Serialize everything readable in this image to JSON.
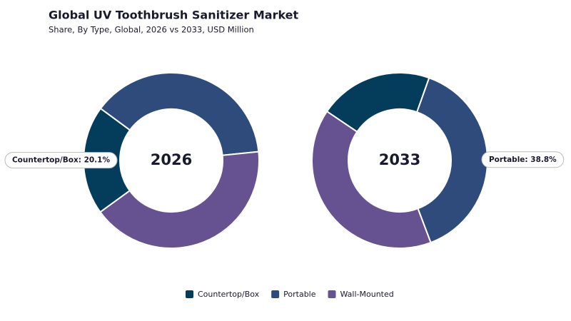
{
  "title": "Global UV Toothbrush Sanitizer Market",
  "subtitle": "Share, By Type, Global, 2026 vs 2033, USD Million",
  "chart_data": [
    {
      "type": "donut",
      "center_label": "2026",
      "categories": [
        "Countertop/Box",
        "Portable",
        "Wall-Mounted"
      ],
      "values": [
        20.1,
        38.3,
        41.6
      ],
      "value_labels": [
        "Countertop/Box: 20.1%",
        null,
        null
      ],
      "colors": [
        "#033d5b",
        "#2f4b7c",
        "#665191"
      ]
    },
    {
      "type": "donut",
      "center_label": "2033",
      "categories": [
        "Countertop/Box",
        "Portable",
        "Wall-Mounted"
      ],
      "values": [
        21.0,
        38.8,
        40.2
      ],
      "value_labels": [
        null,
        "Portable: 38.8%",
        null
      ],
      "colors": [
        "#033d5b",
        "#2f4b7c",
        "#665191"
      ]
    }
  ]
}
